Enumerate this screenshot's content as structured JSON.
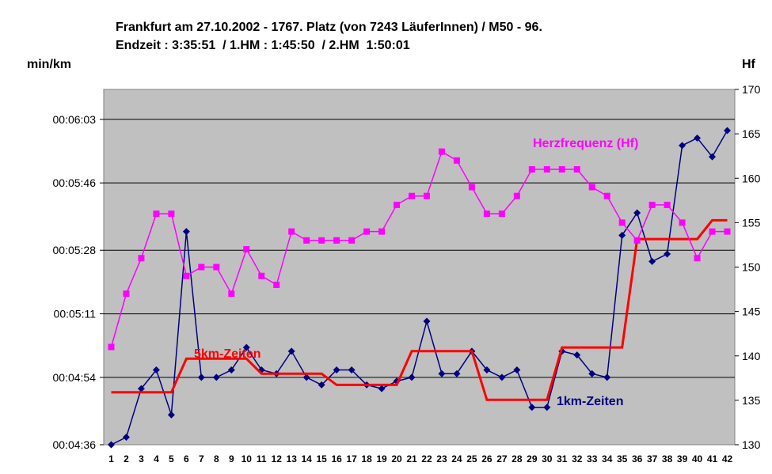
{
  "title_line1": "Frankfurt am 27.10.2002 - 1767. Platz (von 7243 LäuferInnen) / M50 - 96.",
  "title_line2": "Endzeit : 3:35:51  / 1.HM : 1:45:50  / 2.HM  1:50:01",
  "chart_data": {
    "type": "line",
    "categories": [
      "1",
      "2",
      "3",
      "4",
      "5",
      "6",
      "7",
      "8",
      "9",
      "10",
      "11",
      "12",
      "13",
      "14",
      "15",
      "16",
      "17",
      "18",
      "19",
      "20",
      "21",
      "22",
      "23",
      "24",
      "25",
      "26",
      "27",
      "28",
      "29",
      "30",
      "31",
      "32",
      "33",
      "34",
      "35",
      "36",
      "37",
      "38",
      "39",
      "40",
      "41",
      "42"
    ],
    "y_left": {
      "label": "min/km",
      "ticks": [
        "00:04:36",
        "00:04:54",
        "00:05:11",
        "00:05:28",
        "00:05:46",
        "00:06:03"
      ],
      "range_seconds": [
        276,
        371
      ]
    },
    "y_right": {
      "label": "Hf",
      "ticks": [
        "130",
        "135",
        "140",
        "145",
        "150",
        "155",
        "160",
        "165",
        "170"
      ],
      "range": [
        130,
        170
      ]
    },
    "grid": true,
    "series": [
      {
        "name": "1km-Zeiten",
        "axis": "left",
        "color": "#000080",
        "marker": "diamond",
        "values_seconds": [
          276,
          278,
          291,
          296,
          284,
          333,
          294,
          294,
          296,
          302,
          296,
          295,
          301,
          294,
          292,
          296,
          296,
          292,
          291,
          293,
          294,
          309,
          295,
          295,
          301,
          296,
          294,
          296,
          286,
          286,
          301,
          300,
          295,
          294,
          332,
          338,
          325,
          327,
          356,
          358,
          353,
          360
        ]
      },
      {
        "name": "5km-Zeiten",
        "axis": "left",
        "color": "#ff0000",
        "marker": "none",
        "values_seconds": [
          290,
          290,
          290,
          290,
          290,
          299,
          299,
          299,
          299,
          299,
          295,
          295,
          295,
          295,
          295,
          292,
          292,
          292,
          292,
          292,
          301,
          301,
          301,
          301,
          301,
          288,
          288,
          288,
          288,
          288,
          302,
          302,
          302,
          302,
          302,
          331,
          331,
          331,
          331,
          331,
          336,
          336
        ]
      },
      {
        "name": "Herzfrequenz (Hf)",
        "axis": "right",
        "color": "#ff00ff",
        "marker": "square",
        "values": [
          141,
          147,
          151,
          156,
          156,
          149,
          150,
          150,
          147,
          152,
          149,
          148,
          154,
          153,
          153,
          153,
          153,
          154,
          154,
          157,
          158,
          158,
          163,
          162,
          159,
          156,
          156,
          158,
          161,
          161,
          161,
          161,
          159,
          158,
          155,
          153,
          157,
          157,
          155,
          151,
          154,
          154
        ]
      }
    ]
  },
  "colors": {
    "plot_background": "#c0c0c0",
    "gridline": "#000000",
    "pace_line": "#000080",
    "split_line": "#ff0000",
    "heart_rate_line": "#ff00ff"
  }
}
